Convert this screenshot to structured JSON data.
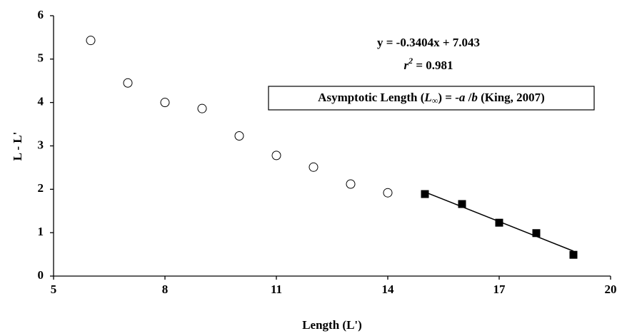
{
  "chart_data": {
    "type": "scatter",
    "x_label": "Length (L')",
    "y_label": "L - L'",
    "xlim": [
      5,
      20
    ],
    "xticks": [
      5,
      8,
      11,
      14,
      17,
      20
    ],
    "ylim": [
      0,
      6
    ],
    "yticks": [
      0,
      1,
      2,
      3,
      4,
      5,
      6
    ],
    "grid": false,
    "series": [
      {
        "marker": "open-circle",
        "color": "#000000",
        "x": [
          6,
          7,
          8,
          9,
          10,
          11,
          12,
          13,
          14
        ],
        "values": [
          5.43,
          4.45,
          4.0,
          3.86,
          3.23,
          2.78,
          2.51,
          2.12,
          1.92
        ]
      },
      {
        "marker": "filled-square",
        "color": "#000000",
        "x": [
          15,
          16,
          17,
          18,
          19
        ],
        "values": [
          1.89,
          1.66,
          1.23,
          0.99,
          0.49
        ]
      }
    ],
    "fit": {
      "label": "y = -0.3404x + 7.043",
      "slope": -0.3404,
      "intercept": 7.043
    },
    "r_squared": {
      "symbol": "r",
      "exponent": "2",
      "text": " = 0.981"
    },
    "box": [
      "Asymptotic Length (",
      "L",
      "∞",
      ") = -",
      "a",
      " /",
      "b",
      "  (King, 2007)"
    ]
  }
}
